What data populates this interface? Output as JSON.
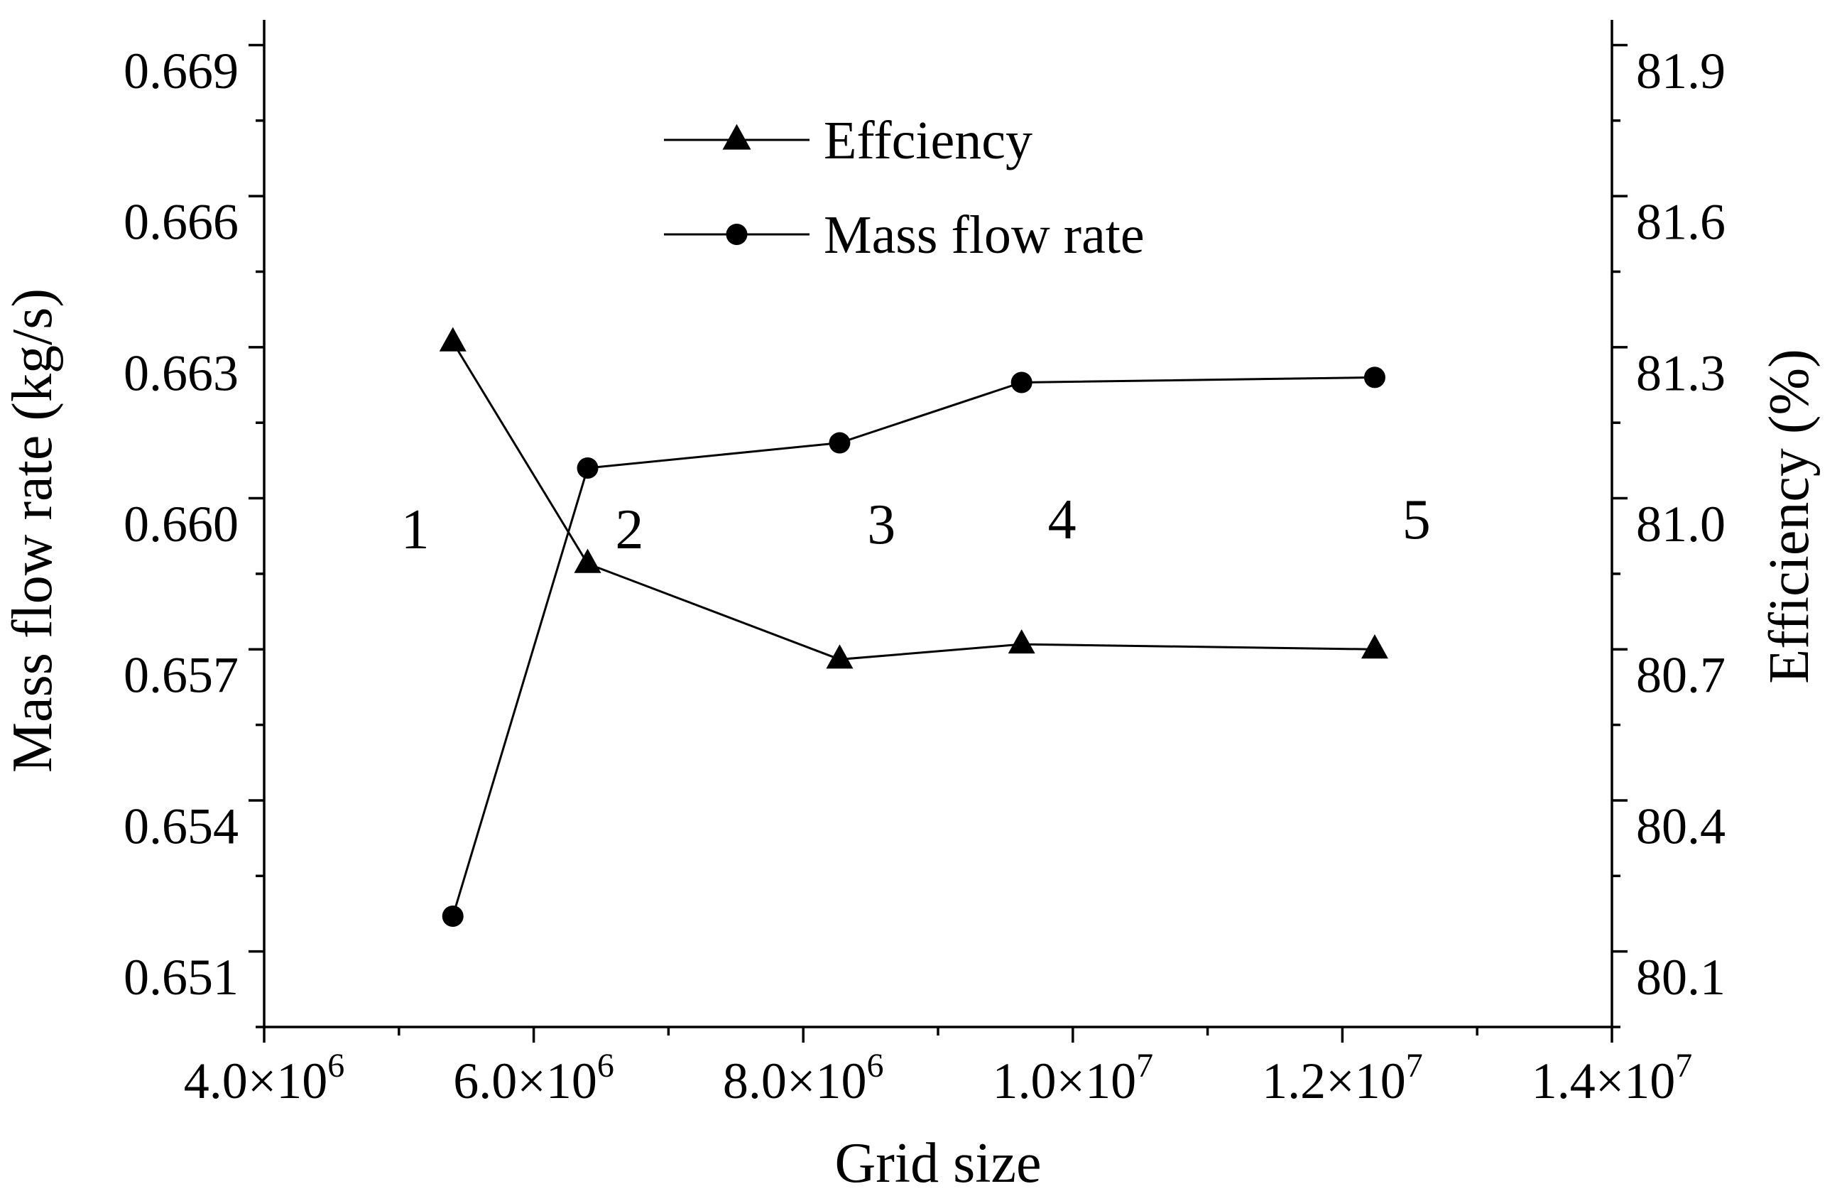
{
  "chart_data": {
    "type": "line",
    "title": "",
    "xlabel": "Grid size",
    "ylabel_left": "Mass flow rate (kg/s)",
    "ylabel_right": "Efficiency (%)",
    "xlim": [
      4000000,
      14000000
    ],
    "ylim_left": [
      0.65,
      0.67
    ],
    "ylim_right": [
      80.0,
      82.0
    ],
    "x_ticks": [
      {
        "value": 4000000,
        "mantissa": "4.0×10",
        "exp": "6"
      },
      {
        "value": 6000000,
        "mantissa": "6.0×10",
        "exp": "6"
      },
      {
        "value": 8000000,
        "mantissa": "8.0×10",
        "exp": "6"
      },
      {
        "value": 10000000,
        "mantissa": "1.0×10",
        "exp": "7"
      },
      {
        "value": 12000000,
        "mantissa": "1.2×10",
        "exp": "7"
      },
      {
        "value": 14000000,
        "mantissa": "1.4×10",
        "exp": "7"
      }
    ],
    "y_left_ticks": [
      "0.651",
      "0.654",
      "0.657",
      "0.660",
      "0.663",
      "0.666",
      "0.669"
    ],
    "y_right_ticks": [
      "80.1",
      "80.4",
      "80.7",
      "81.0",
      "81.3",
      "81.6",
      "81.9"
    ],
    "legend": {
      "position": "top-center",
      "entries": [
        "Effciency",
        "Mass flow rate"
      ]
    },
    "grid": false,
    "series": [
      {
        "name": "Effciency",
        "axis": "right",
        "marker": "triangle",
        "x": [
          5400000,
          6400000,
          8270000,
          9620000,
          12240000
        ],
        "values": [
          81.36,
          80.92,
          80.73,
          80.76,
          80.75
        ]
      },
      {
        "name": "Mass flow rate",
        "axis": "left",
        "marker": "circle",
        "x": [
          5400000,
          6400000,
          8270000,
          9620000,
          12240000
        ],
        "values": [
          0.6522,
          0.6611,
          0.6616,
          0.6628,
          0.6629
        ]
      }
    ],
    "annotations": [
      {
        "text": "1",
        "x": 5120000,
        "y_left": 0.6599
      },
      {
        "text": "2",
        "x": 6710000,
        "y_left": 0.6599
      },
      {
        "text": "3",
        "x": 8580000,
        "y_left": 0.66
      },
      {
        "text": "4",
        "x": 9920000,
        "y_left": 0.6601
      },
      {
        "text": "5",
        "x": 12550000,
        "y_left": 0.6601
      }
    ]
  }
}
